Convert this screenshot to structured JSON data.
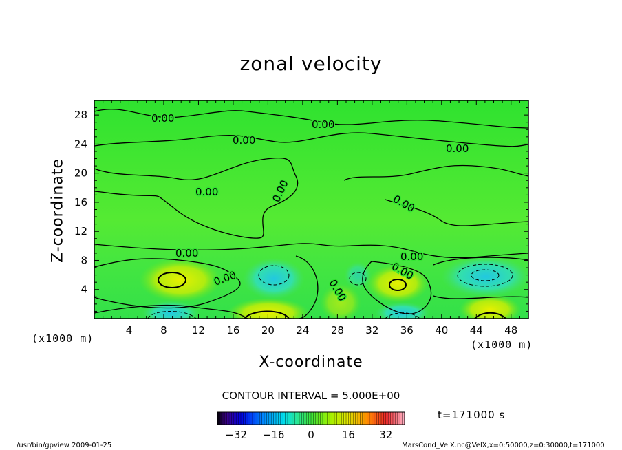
{
  "chart_data": {
    "type": "heatmap",
    "title": "zonal velocity",
    "xlabel": "X-coordinate",
    "ylabel": "Z-coordinate",
    "x_unit": "(x1000 m)",
    "y_unit": "(x1000 m)",
    "xlim": [
      0,
      50
    ],
    "ylim": [
      0,
      30
    ],
    "x_ticks": [
      "4",
      "8",
      "12",
      "16",
      "20",
      "24",
      "28",
      "32",
      "36",
      "40",
      "44",
      "48"
    ],
    "y_ticks": [
      "4",
      "8",
      "12",
      "16",
      "20",
      "24",
      "28"
    ],
    "contour_labels": [
      "0.00",
      "0.00",
      "0.00",
      "0.00",
      "0.00",
      "0.00",
      "0.00",
      "0.00",
      "0.00",
      "0.00",
      "0.00",
      "0.00"
    ],
    "contour_interval_text": "CONTOUR INTERVAL = 5.000E+00",
    "colorbar": {
      "range": [
        -40,
        40
      ],
      "ticks": [
        "-32",
        "-16",
        "0",
        "16",
        "32"
      ]
    },
    "time_label": "t=171000 s"
  },
  "footer": {
    "left": "/usr/bin/gpview  2009-01-25",
    "right": "MarsCond_VelX.nc@VelX,x=0:50000,z=0:30000,t=171000"
  },
  "colors": {
    "background_green": "#33e633",
    "positive_yellow": "#ccf000",
    "negative_cyan": "#33ddbb"
  }
}
